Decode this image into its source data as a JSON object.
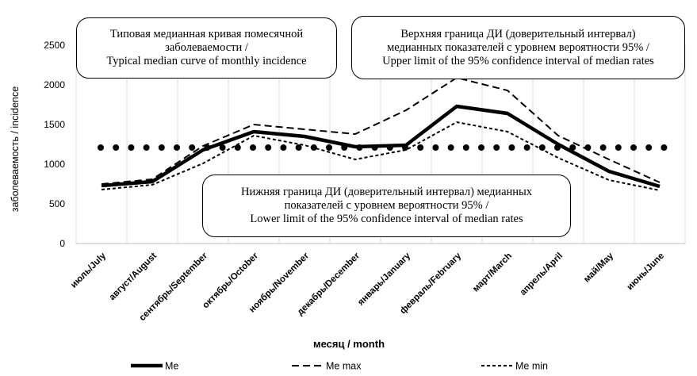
{
  "chart_data": {
    "type": "line",
    "ylabel": "заболеваемость / incidence",
    "xlabel": "месяц / month",
    "ylim": [
      0,
      2500
    ],
    "yticks": [
      "0",
      "500",
      "1000",
      "1500",
      "2000",
      "2500"
    ],
    "categories": [
      "июль/July",
      "август/August",
      "сентябрь/September",
      "октябрь/October",
      "ноябрь/November",
      "декабрь/December",
      "январь/January",
      "февраль/February",
      "март/March",
      "апрель/April",
      "май/May",
      "июнь/June"
    ],
    "series": [
      {
        "name": "Me",
        "style": "solid-thick",
        "values": [
          730,
          780,
          1180,
          1410,
          1350,
          1220,
          1240,
          1730,
          1640,
          1250,
          910,
          720
        ]
      },
      {
        "name": "Me max",
        "style": "dashed-long",
        "values": [
          750,
          810,
          1230,
          1500,
          1440,
          1380,
          1680,
          2090,
          1930,
          1360,
          1060,
          770
        ]
      },
      {
        "name": "Me min",
        "style": "dashed-short",
        "values": [
          680,
          740,
          1010,
          1360,
          1240,
          1060,
          1180,
          1530,
          1410,
          1080,
          800,
          670
        ]
      },
      {
        "style": "dotted",
        "values": [
          1210,
          1210,
          1210,
          1210,
          1210,
          1210,
          1210,
          1210,
          1210,
          1210,
          1210,
          1210
        ]
      }
    ],
    "grid": "vertical",
    "legend": "bottom",
    "callouts": [
      {
        "lines": [
          "Типовая медианная кривая помесячной",
          "заболеваемости  /",
          "Typical median curve of monthly incidence"
        ]
      },
      {
        "lines": [
          "Верхняя граница ДИ (доверительный интервал)",
          "медианных показателей с уровнем вероятности 95% /",
          "Upper limit of the 95% confidence interval of median rates"
        ]
      },
      {
        "lines": [
          "Нижняя граница ДИ (доверительный интервал) медианных",
          "показателей с уровнем вероятности 95% /",
          "Lower limit of the 95% confidence interval of median rates"
        ]
      }
    ]
  }
}
